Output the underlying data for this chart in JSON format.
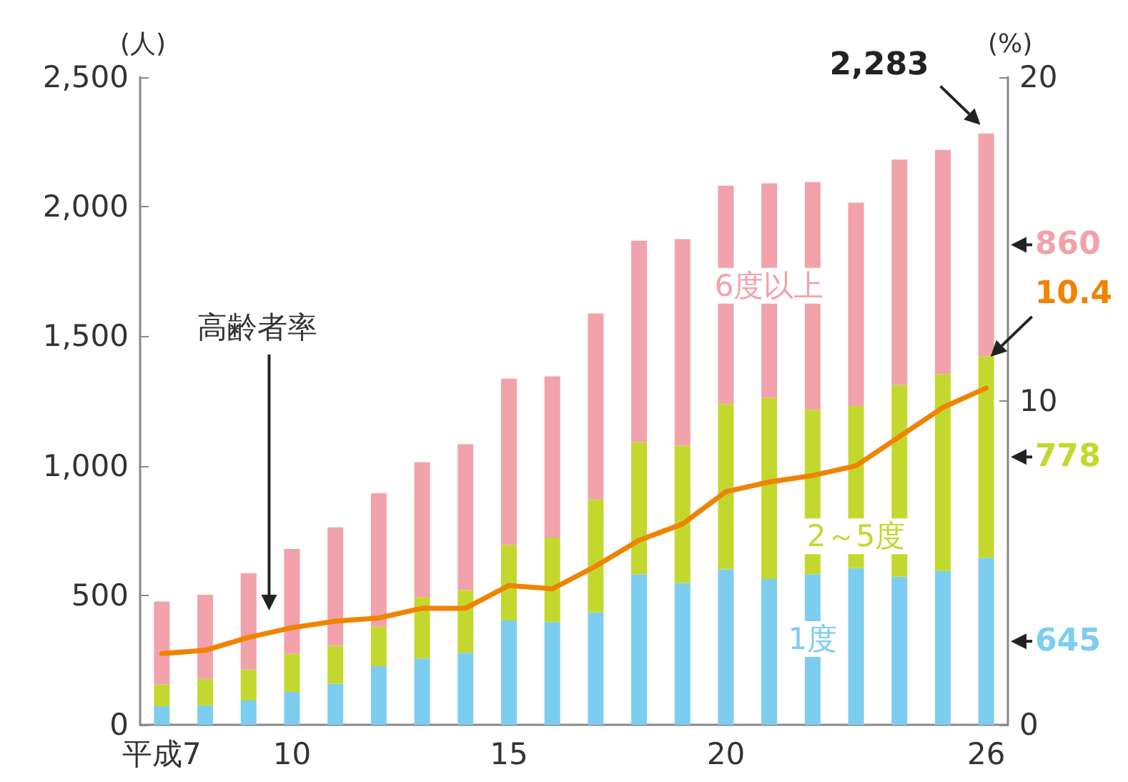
{
  "chart_data": {
    "type": "bar",
    "stacked": true,
    "categories": [
      "平成7",
      null,
      null,
      "10",
      null,
      null,
      null,
      null,
      "15",
      null,
      null,
      null,
      null,
      "20",
      null,
      null,
      null,
      null,
      null,
      "26"
    ],
    "ylabel": "(人)",
    "y2label": "(%)",
    "ylim": [
      0,
      2500
    ],
    "yticks": [
      0,
      500,
      {
        "value": 1000,
        "label": "1,000"
      },
      {
        "value": 1500,
        "label": "1,500"
      },
      {
        "value": 2000,
        "label": "2,000"
      },
      {
        "value": 2500,
        "label": "2,500"
      }
    ],
    "y2lim": [
      0,
      20
    ],
    "y2ticks": [
      0,
      10,
      20
    ],
    "series": [
      {
        "name": "1度",
        "color": "#7dcdf0",
        "values": [
          72,
          75,
          94,
          127,
          158,
          226,
          256,
          278,
          403,
          397,
          434,
          581,
          548,
          600,
          563,
          581,
          605,
          572,
          594,
          645
        ]
      },
      {
        "name": "2～5度",
        "color": "#c3d82e",
        "values": [
          84,
          102,
          119,
          147,
          147,
          153,
          237,
          242,
          292,
          326,
          436,
          510,
          530,
          638,
          699,
          635,
          626,
          740,
          760,
          778
        ]
      },
      {
        "name": "6度以上",
        "color": "#f2a2aa",
        "values": [
          320,
          325,
          372,
          405,
          457,
          515,
          521,
          563,
          641,
          622,
          718,
          778,
          797,
          843,
          828,
          879,
          785,
          870,
          865,
          860
        ]
      },
      {
        "name": "高齢者率",
        "type": "line",
        "axis": "y2",
        "color": "#f08300",
        "values": [
          2.2,
          2.3,
          2.7,
          3.0,
          3.2,
          3.3,
          3.6,
          3.6,
          4.3,
          4.2,
          4.9,
          5.7,
          6.2,
          7.2,
          7.5,
          7.7,
          8.0,
          8.9,
          9.8,
          10.4
        ],
        "value_labels": [
          null,
          null,
          null,
          null,
          null,
          null,
          null,
          null,
          null,
          null,
          null,
          null,
          null,
          null,
          null,
          null,
          null,
          null,
          null,
          "10.4"
        ]
      }
    ],
    "totals": [
      null,
      null,
      null,
      null,
      null,
      null,
      null,
      null,
      null,
      null,
      null,
      null,
      null,
      null,
      null,
      null,
      null,
      null,
      null,
      "2,283"
    ],
    "annotations": [
      "645",
      "778",
      "860"
    ],
    "marker": "none",
    "line_style": "solid",
    "grid": false,
    "legend": false
  }
}
